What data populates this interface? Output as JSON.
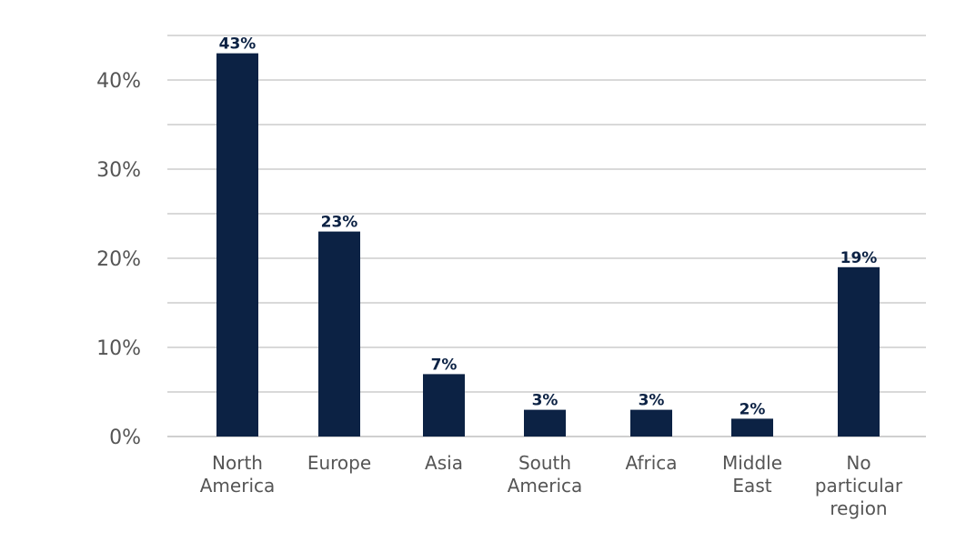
{
  "chart_data": {
    "type": "bar",
    "title": "",
    "xlabel": "",
    "ylabel": "",
    "categories": [
      [
        "North",
        "America"
      ],
      [
        "Europe"
      ],
      [
        "Asia"
      ],
      [
        "South",
        "America"
      ],
      [
        "Africa"
      ],
      [
        "Middle",
        "East"
      ],
      [
        "No",
        "particular",
        "region"
      ]
    ],
    "values": [
      43,
      23,
      7,
      3,
      3,
      2,
      19
    ],
    "data_labels": [
      "43%",
      "23%",
      "7%",
      "3%",
      "3%",
      "2%",
      "19%"
    ],
    "ylim": [
      0,
      45
    ],
    "major_ticks": [
      0,
      10,
      20,
      30,
      40
    ],
    "tick_labels": [
      "0%",
      "10%",
      "20%",
      "30%",
      "40%"
    ],
    "grid_ticks": [
      5,
      15,
      25,
      35,
      45
    ],
    "grid": true,
    "bar_color": "#0c2244"
  }
}
